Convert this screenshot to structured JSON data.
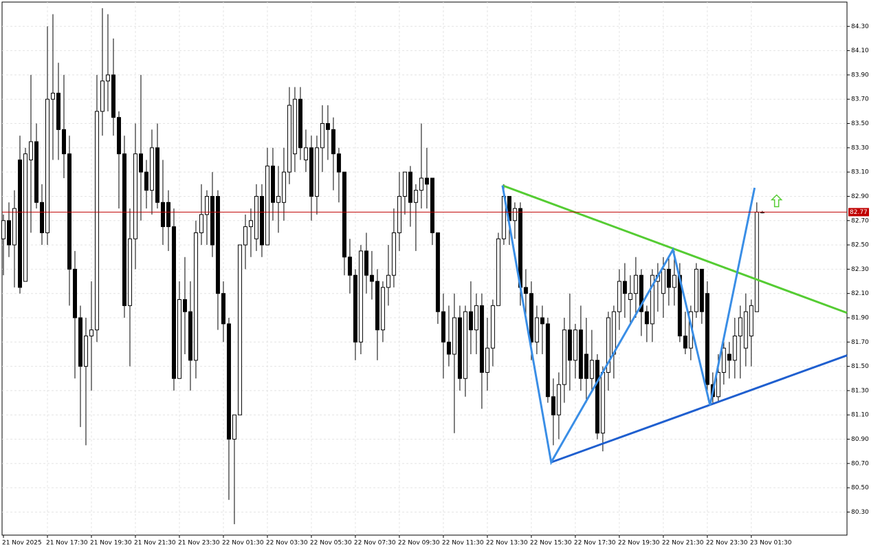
{
  "chart_data": {
    "type": "candlestick",
    "categories": [
      "21 Nov 2025",
      null,
      null,
      null,
      null,
      null,
      null,
      null,
      "21 Nov 17:30",
      null,
      null,
      null,
      null,
      null,
      null,
      null,
      "21 Nov 19:30",
      null,
      null,
      null,
      null,
      null,
      null,
      null,
      "21 Nov 21:30",
      null,
      null,
      null,
      null,
      null,
      null,
      null,
      "21 Nov 23:30",
      null,
      null,
      null,
      null,
      null,
      null,
      null,
      "22 Nov 01:30",
      null,
      null,
      null,
      null,
      null,
      null,
      null,
      "22 Nov 03:30",
      null,
      null,
      null,
      null,
      null,
      null,
      null,
      "22 Nov 05:30",
      null,
      null,
      null,
      null,
      null,
      null,
      null,
      "22 Nov 07:30",
      null,
      null,
      null,
      null,
      null,
      null,
      null,
      "22 Nov 09:30",
      null,
      null,
      null,
      null,
      null,
      null,
      null,
      "22 Nov 11:30",
      null,
      null,
      null,
      null,
      null,
      null,
      null,
      "22 Nov 13:30",
      null,
      null,
      null,
      null,
      null,
      null,
      null,
      "22 Nov 15:30",
      null,
      null,
      null,
      null,
      null,
      null,
      null,
      "22 Nov 17:30",
      null,
      null,
      null,
      null,
      null,
      null,
      null,
      "22 Nov 19:30",
      null,
      null,
      null,
      null,
      null,
      null,
      null,
      "22 Nov 21:30",
      null,
      null,
      null,
      null,
      null,
      null,
      null,
      "22 Nov 23:30",
      null,
      null,
      null,
      null,
      null,
      null,
      null,
      "23 Nov 01:30",
      null,
      null
    ],
    "open": [
      82.55,
      82.7,
      82.5,
      83.2,
      82.2,
      83.2,
      83.35,
      82.85,
      82.6,
      83.7,
      83.75,
      83.45,
      83.25,
      82.3,
      81.9,
      81.5,
      81.75,
      81.8,
      83.6,
      83.85,
      83.9,
      83.55,
      83.25,
      82.0,
      82.55,
      83.25,
      83.1,
      82.95,
      83.3,
      82.85,
      82.85,
      82.65,
      81.4,
      82.05,
      81.95,
      81.55,
      82.6,
      82.75,
      82.9,
      82.9,
      82.1,
      81.85,
      80.9,
      81.1,
      82.5,
      82.65,
      82.55,
      82.9,
      82.5,
      83.15,
      82.85,
      82.85,
      83.1,
      83.25,
      83.7,
      83.2,
      83.3,
      82.9,
      83.3,
      83.5,
      83.45,
      83.25,
      83.1,
      82.4,
      82.25,
      81.7,
      82.45,
      82.25,
      82.2,
      81.8,
      82.15,
      82.25,
      82.6,
      82.9,
      83.1,
      82.85,
      82.95,
      83.05,
      83.05,
      82.6,
      81.95,
      81.7,
      81.6,
      81.9,
      81.4,
      81.95,
      81.8,
      82.0,
      81.45,
      81.65,
      82.0,
      82.55,
      82.9,
      82.7,
      82.8,
      82.15,
      82.1,
      81.7,
      81.9,
      81.85,
      81.25,
      81.1,
      81.35,
      81.8,
      81.55,
      81.8,
      81.6,
      81.4,
      81.55,
      80.95,
      81.45,
      81.6,
      81.95,
      82.2,
      82.05,
      82.1,
      82.25,
      81.95,
      81.85,
      82.2,
      82.1,
      82.3,
      82.15,
      82.25,
      81.75,
      81.65,
      81.95,
      82.3,
      82.1,
      81.35,
      81.25,
      81.45,
      81.6,
      81.55,
      81.75,
      81.65,
      81.75,
      81.95,
      82.77
    ],
    "high": [
      82.75,
      82.85,
      82.95,
      83.4,
      83.3,
      83.9,
      83.5,
      83.0,
      84.3,
      84.4,
      84.0,
      83.9,
      83.4,
      82.45,
      82.0,
      81.9,
      82.2,
      83.9,
      84.45,
      84.4,
      84.2,
      83.6,
      83.4,
      82.8,
      83.5,
      83.9,
      83.2,
      83.45,
      83.5,
      83.2,
      82.95,
      82.8,
      82.2,
      82.4,
      82.2,
      82.7,
      83.0,
      82.95,
      83.1,
      82.95,
      82.2,
      81.9,
      81.1,
      82.5,
      82.75,
      82.8,
      83.0,
      83.0,
      83.3,
      83.3,
      83.15,
      83.3,
      83.8,
      83.8,
      83.8,
      83.45,
      83.4,
      83.4,
      83.65,
      83.65,
      83.55,
      83.3,
      83.1,
      82.55,
      82.3,
      82.5,
      82.6,
      82.45,
      82.3,
      82.2,
      82.5,
      82.8,
      83.1,
      83.1,
      83.15,
      83.0,
      83.5,
      83.3,
      83.05,
      82.6,
      82.1,
      82.0,
      82.1,
      82.0,
      82.0,
      82.2,
      82.1,
      82.1,
      81.9,
      82.05,
      82.6,
      83.0,
      82.9,
      82.85,
      82.85,
      82.3,
      82.2,
      82.0,
      82.0,
      81.9,
      81.4,
      81.45,
      81.9,
      82.1,
      81.85,
      82.0,
      81.9,
      81.8,
      81.6,
      81.5,
      81.95,
      82.0,
      82.3,
      82.35,
      82.25,
      82.4,
      82.3,
      82.0,
      82.3,
      82.35,
      82.4,
      82.4,
      82.45,
      82.35,
      81.95,
      82.0,
      82.35,
      82.3,
      82.2,
      81.45,
      81.6,
      81.7,
      81.7,
      81.9,
      82.0,
      82.1,
      82.05,
      82.85,
      82.78
    ],
    "low": [
      82.25,
      82.4,
      82.15,
      82.1,
      82.2,
      82.6,
      82.8,
      82.5,
      82.5,
      83.2,
      83.2,
      83.05,
      82.0,
      81.4,
      81.0,
      80.85,
      81.3,
      81.7,
      83.4,
      83.6,
      83.4,
      82.8,
      81.9,
      81.5,
      82.3,
      82.7,
      82.8,
      82.75,
      82.8,
      82.5,
      82.45,
      81.3,
      81.4,
      81.6,
      81.3,
      81.4,
      82.5,
      82.5,
      82.4,
      81.8,
      81.7,
      80.4,
      80.2,
      81.1,
      82.3,
      82.4,
      82.45,
      82.4,
      82.5,
      82.7,
      82.6,
      82.7,
      83.0,
      83.1,
      83.2,
      83.1,
      82.7,
      82.75,
      83.1,
      83.2,
      82.95,
      82.85,
      82.25,
      82.1,
      81.55,
      81.6,
      82.1,
      82.05,
      81.55,
      81.7,
      82.0,
      82.15,
      82.45,
      82.75,
      82.65,
      82.45,
      82.8,
      82.8,
      82.5,
      81.85,
      81.4,
      81.5,
      80.95,
      81.3,
      81.25,
      81.6,
      81.6,
      81.15,
      81.3,
      81.5,
      82.0,
      82.5,
      82.5,
      82.55,
      82.0,
      81.9,
      81.55,
      81.6,
      81.6,
      81.2,
      80.85,
      80.9,
      81.2,
      81.3,
      81.4,
      81.3,
      81.2,
      81.3,
      80.9,
      80.8,
      81.3,
      81.4,
      81.8,
      81.9,
      81.85,
      81.9,
      81.75,
      81.7,
      81.7,
      81.95,
      81.9,
      82.0,
      82.0,
      81.7,
      81.6,
      81.55,
      81.9,
      81.85,
      81.3,
      81.2,
      81.2,
      81.35,
      81.4,
      81.4,
      81.4,
      81.5,
      81.5,
      81.95,
      82.76
    ],
    "close": [
      82.7,
      82.5,
      82.8,
      82.15,
      83.25,
      83.35,
      82.85,
      82.6,
      83.7,
      83.75,
      83.45,
      83.25,
      82.3,
      81.9,
      81.5,
      81.75,
      81.8,
      83.6,
      83.85,
      83.9,
      83.55,
      83.25,
      82.0,
      82.55,
      83.25,
      83.1,
      82.95,
      83.3,
      82.85,
      82.65,
      82.65,
      81.4,
      82.05,
      81.95,
      81.55,
      82.6,
      82.75,
      82.9,
      82.5,
      82.1,
      81.85,
      80.9,
      81.1,
      82.5,
      82.65,
      82.7,
      82.9,
      82.5,
      83.15,
      82.85,
      82.9,
      83.1,
      83.65,
      83.7,
      83.3,
      83.3,
      82.9,
      83.3,
      83.5,
      83.45,
      83.25,
      83.1,
      82.4,
      82.25,
      81.7,
      82.45,
      82.25,
      82.2,
      81.8,
      82.15,
      82.25,
      82.6,
      82.9,
      83.1,
      82.85,
      82.95,
      83.05,
      83.0,
      82.6,
      81.95,
      81.7,
      81.6,
      81.9,
      81.4,
      81.95,
      81.8,
      82.0,
      81.45,
      81.65,
      82.0,
      82.55,
      82.9,
      82.7,
      82.8,
      82.15,
      82.1,
      81.7,
      81.9,
      81.85,
      81.25,
      81.1,
      81.35,
      81.8,
      81.55,
      81.8,
      81.4,
      81.4,
      81.55,
      80.95,
      81.45,
      81.9,
      81.95,
      82.2,
      82.1,
      82.1,
      82.25,
      81.95,
      81.85,
      82.25,
      82.25,
      82.3,
      82.15,
      82.25,
      81.75,
      81.65,
      81.95,
      82.3,
      81.95,
      81.35,
      81.25,
      81.45,
      81.65,
      81.55,
      81.75,
      81.9,
      81.95,
      82.0,
      82.77,
      82.77
    ],
    "up_color": "#ffffff",
    "down_color": "#000000",
    "xlim": [
      -0.25,
      153.4
    ],
    "ylim": [
      80.11,
      84.5
    ],
    "yticks": [
      {
        "value": 80.3,
        "label": "80.30"
      },
      {
        "value": 80.5,
        "label": "80.50"
      },
      {
        "value": 80.7,
        "label": "80.70"
      },
      {
        "value": 80.9,
        "label": "80.90"
      },
      {
        "value": 81.1,
        "label": "81.10"
      },
      {
        "value": 81.3,
        "label": "81.30"
      },
      {
        "value": 81.5,
        "label": "81.50"
      },
      {
        "value": 81.7,
        "label": "81.70"
      },
      {
        "value": 81.9,
        "label": "81.90"
      },
      {
        "value": 82.1,
        "label": "82.10"
      },
      {
        "value": 82.3,
        "label": "82.30"
      },
      {
        "value": 82.5,
        "label": "82.50"
      },
      {
        "value": 82.7,
        "label": "82.70"
      },
      {
        "value": 82.9,
        "label": "82.90"
      },
      {
        "value": 83.1,
        "label": "83.10"
      },
      {
        "value": 83.3,
        "label": "83.30"
      },
      {
        "value": 83.5,
        "label": "83.50"
      },
      {
        "value": 83.7,
        "label": "83.70"
      },
      {
        "value": 83.9,
        "label": "83.90"
      },
      {
        "value": 84.1,
        "label": "84.10"
      },
      {
        "value": 84.3,
        "label": "84.30"
      }
    ],
    "grid": true,
    "last_price": 82.77,
    "last_price_color": "#c00000",
    "drawings": [
      {
        "color": "#55cc33",
        "x": [
          90.75,
          153.4
        ],
        "y": [
          82.99,
          81.94
        ]
      },
      {
        "color": "#1f5fcf",
        "x": [
          99.6,
          153.4
        ],
        "y": [
          80.71,
          81.59
        ]
      },
      {
        "color": "#3a8ee6",
        "x": [
          90.75,
          99.6,
          121.75,
          128.5,
          136.6
        ],
        "y": [
          82.99,
          80.71,
          82.46,
          81.18,
          82.97
        ]
      }
    ],
    "signal": {
      "x": 140.6,
      "y": 82.86,
      "color": "#55cc33"
    }
  }
}
